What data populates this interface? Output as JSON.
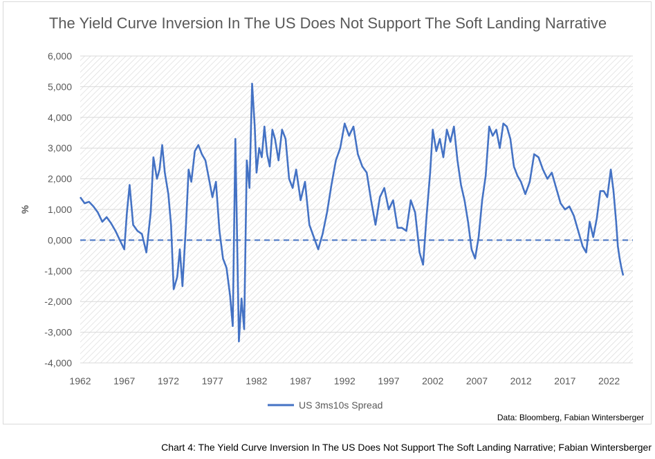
{
  "title": "The Yield Curve Inversion In The US Does Not Support The Soft Landing Narrative",
  "source": "Data: Bloomberg, Fabian Wintersberger",
  "caption": "Chart 4: The Yield Curve Inversion In The US Does Not Support The Soft Landing Narrative; Fabian Wintersberger",
  "colors": {
    "series": "#4472c4",
    "grid": "#d9d9d9",
    "text": "#595959"
  },
  "chart_data": {
    "type": "line",
    "title": "The Yield Curve Inversion In The US Does Not Support The Soft Landing Narrative",
    "xlabel": "",
    "ylabel": "%",
    "xlim": [
      1962,
      2024.7
    ],
    "ylim": [
      -4,
      6
    ],
    "x_ticks": [
      "1962",
      "1967",
      "1972",
      "1977",
      "1982",
      "1987",
      "1992",
      "1997",
      "2002",
      "2007",
      "2012",
      "2017",
      "2022"
    ],
    "y_ticks": [
      "-4,000",
      "-3,000",
      "-2,000",
      "-1,000",
      "0,000",
      "1,000",
      "2,000",
      "3,000",
      "4,000",
      "5,000",
      "6,000"
    ],
    "reference_line": {
      "y": 0,
      "style": "dashed"
    },
    "legend": {
      "position": "bottom",
      "entries": [
        "US 3ms10s Spread"
      ]
    },
    "series": [
      {
        "name": "US 3ms10s Spread",
        "x": [
          1962.0,
          1962.5,
          1963.0,
          1963.5,
          1964.0,
          1964.5,
          1965.0,
          1965.5,
          1966.0,
          1966.5,
          1967.0,
          1967.3,
          1967.6,
          1968.0,
          1968.5,
          1969.0,
          1969.5,
          1970.0,
          1970.3,
          1970.7,
          1971.0,
          1971.3,
          1971.6,
          1972.0,
          1972.3,
          1972.6,
          1973.0,
          1973.3,
          1973.6,
          1974.0,
          1974.3,
          1974.6,
          1975.0,
          1975.4,
          1975.8,
          1976.2,
          1976.6,
          1977.0,
          1977.4,
          1977.8,
          1978.2,
          1978.6,
          1979.0,
          1979.3,
          1979.6,
          1980.0,
          1980.3,
          1980.6,
          1980.9,
          1981.2,
          1981.5,
          1981.8,
          1982.0,
          1982.3,
          1982.6,
          1982.9,
          1983.2,
          1983.5,
          1983.8,
          1984.1,
          1984.5,
          1984.9,
          1985.3,
          1985.7,
          1986.1,
          1986.5,
          1987.0,
          1987.5,
          1988.0,
          1988.5,
          1989.0,
          1989.5,
          1990.0,
          1990.5,
          1991.0,
          1991.5,
          1992.0,
          1992.5,
          1993.0,
          1993.5,
          1994.0,
          1994.5,
          1995.0,
          1995.5,
          1996.0,
          1996.5,
          1997.0,
          1997.5,
          1998.0,
          1998.5,
          1999.0,
          1999.5,
          2000.0,
          2000.5,
          2000.9,
          2001.3,
          2001.7,
          2002.0,
          2002.4,
          2002.8,
          2003.2,
          2003.6,
          2004.0,
          2004.4,
          2004.8,
          2005.2,
          2005.6,
          2006.0,
          2006.4,
          2006.8,
          2007.2,
          2007.6,
          2008.0,
          2008.4,
          2008.8,
          2009.2,
          2009.6,
          2010.0,
          2010.4,
          2010.8,
          2011.2,
          2011.6,
          2012.0,
          2012.5,
          2013.0,
          2013.5,
          2014.0,
          2014.5,
          2015.0,
          2015.5,
          2016.0,
          2016.5,
          2017.0,
          2017.5,
          2018.0,
          2018.5,
          2019.0,
          2019.4,
          2019.8,
          2020.2,
          2020.6,
          2021.0,
          2021.4,
          2021.8,
          2022.2,
          2022.5,
          2022.8,
          2023.0,
          2023.2,
          2023.4,
          2023.6
        ],
        "values": [
          1.4,
          1.2,
          1.25,
          1.1,
          0.9,
          0.6,
          0.75,
          0.55,
          0.3,
          0.0,
          -0.3,
          0.9,
          1.8,
          0.5,
          0.3,
          0.2,
          -0.4,
          0.9,
          2.7,
          2.0,
          2.3,
          3.1,
          2.2,
          1.5,
          0.5,
          -1.6,
          -1.2,
          -0.3,
          -1.5,
          0.5,
          2.3,
          1.9,
          2.9,
          3.1,
          2.8,
          2.6,
          2.0,
          1.4,
          1.9,
          0.3,
          -0.6,
          -0.9,
          -1.8,
          -2.8,
          3.3,
          -3.3,
          -1.9,
          -2.9,
          2.6,
          1.7,
          5.1,
          3.7,
          2.2,
          3.0,
          2.7,
          3.7,
          2.8,
          2.4,
          3.6,
          3.3,
          2.6,
          3.6,
          3.3,
          2.0,
          1.7,
          2.3,
          1.3,
          1.9,
          0.5,
          0.1,
          -0.3,
          0.2,
          0.9,
          1.8,
          2.6,
          3.0,
          3.8,
          3.4,
          3.7,
          2.8,
          2.4,
          2.2,
          1.3,
          0.5,
          1.4,
          1.7,
          1.0,
          1.3,
          0.4,
          0.4,
          0.3,
          1.3,
          0.9,
          -0.4,
          -0.8,
          0.8,
          2.2,
          3.6,
          2.9,
          3.3,
          2.7,
          3.6,
          3.2,
          3.7,
          2.6,
          1.8,
          1.3,
          0.6,
          -0.3,
          -0.6,
          0.1,
          1.3,
          2.1,
          3.7,
          3.4,
          3.6,
          3.0,
          3.8,
          3.7,
          3.3,
          2.4,
          2.1,
          1.9,
          1.5,
          1.9,
          2.8,
          2.7,
          2.3,
          2.0,
          2.2,
          1.7,
          1.2,
          1.0,
          1.1,
          0.8,
          0.3,
          -0.2,
          -0.4,
          0.6,
          0.1,
          0.7,
          1.6,
          1.6,
          1.4,
          2.3,
          1.6,
          0.6,
          -0.2,
          -0.6,
          -0.9,
          -1.15
        ]
      }
    ]
  }
}
